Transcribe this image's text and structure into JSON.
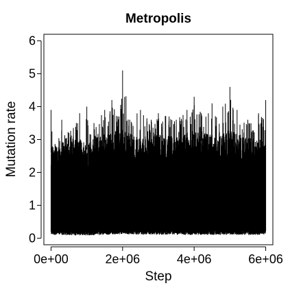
{
  "chart_data": {
    "type": "line",
    "title": "Metropolis",
    "xlabel": "Step",
    "ylabel": "Mutation rate",
    "xlim": [
      -200000,
      6200000
    ],
    "ylim": [
      -0.2,
      6.2
    ],
    "x_ticks": [
      0,
      2000000,
      4000000,
      6000000
    ],
    "x_tick_labels": [
      "0e+00",
      "2e+06",
      "4e+06",
      "6e+06"
    ],
    "y_ticks": [
      0,
      1,
      2,
      3,
      4,
      5,
      6
    ],
    "y_tick_labels": [
      "0",
      "1",
      "2",
      "3",
      "4",
      "5",
      "6"
    ],
    "grid": false,
    "trace_color": "#000000",
    "series": [
      {
        "x_range": [
          0,
          6000000
        ],
        "min_envelope": {
          "x": [
            0,
            1000000,
            2000000,
            3000000,
            4000000,
            5000000,
            6000000
          ],
          "y": [
            0.1,
            0.08,
            0.12,
            0.1,
            0.1,
            0.1,
            0.1
          ]
        },
        "max_envelope": {
          "x": [
            0,
            100000,
            300000,
            500000,
            800000,
            1000000,
            1200000,
            1500000,
            1700000,
            1900000,
            2000000,
            2200000,
            2500000,
            2800000,
            3000000,
            3300000,
            3500000,
            3800000,
            4000000,
            4200000,
            4500000,
            4800000,
            5000000,
            5200000,
            5500000,
            5800000,
            6000000
          ],
          "y": [
            3.9,
            2.5,
            3.6,
            3.2,
            3.8,
            4.0,
            3.5,
            3.9,
            4.2,
            3.7,
            5.1,
            3.6,
            3.9,
            3.6,
            3.8,
            3.7,
            3.6,
            3.9,
            4.3,
            3.8,
            4.1,
            4.0,
            4.6,
            3.9,
            3.6,
            3.8,
            4.2
          ]
        },
        "bulk_envelope": {
          "x": [
            0,
            500000,
            1000000,
            1500000,
            2000000,
            2500000,
            3000000,
            3500000,
            4000000,
            4500000,
            5000000,
            5500000,
            6000000
          ],
          "y": [
            2.6,
            2.8,
            2.7,
            2.9,
            3.0,
            2.8,
            2.9,
            2.8,
            3.0,
            2.9,
            3.0,
            2.8,
            2.7
          ]
        }
      }
    ]
  }
}
